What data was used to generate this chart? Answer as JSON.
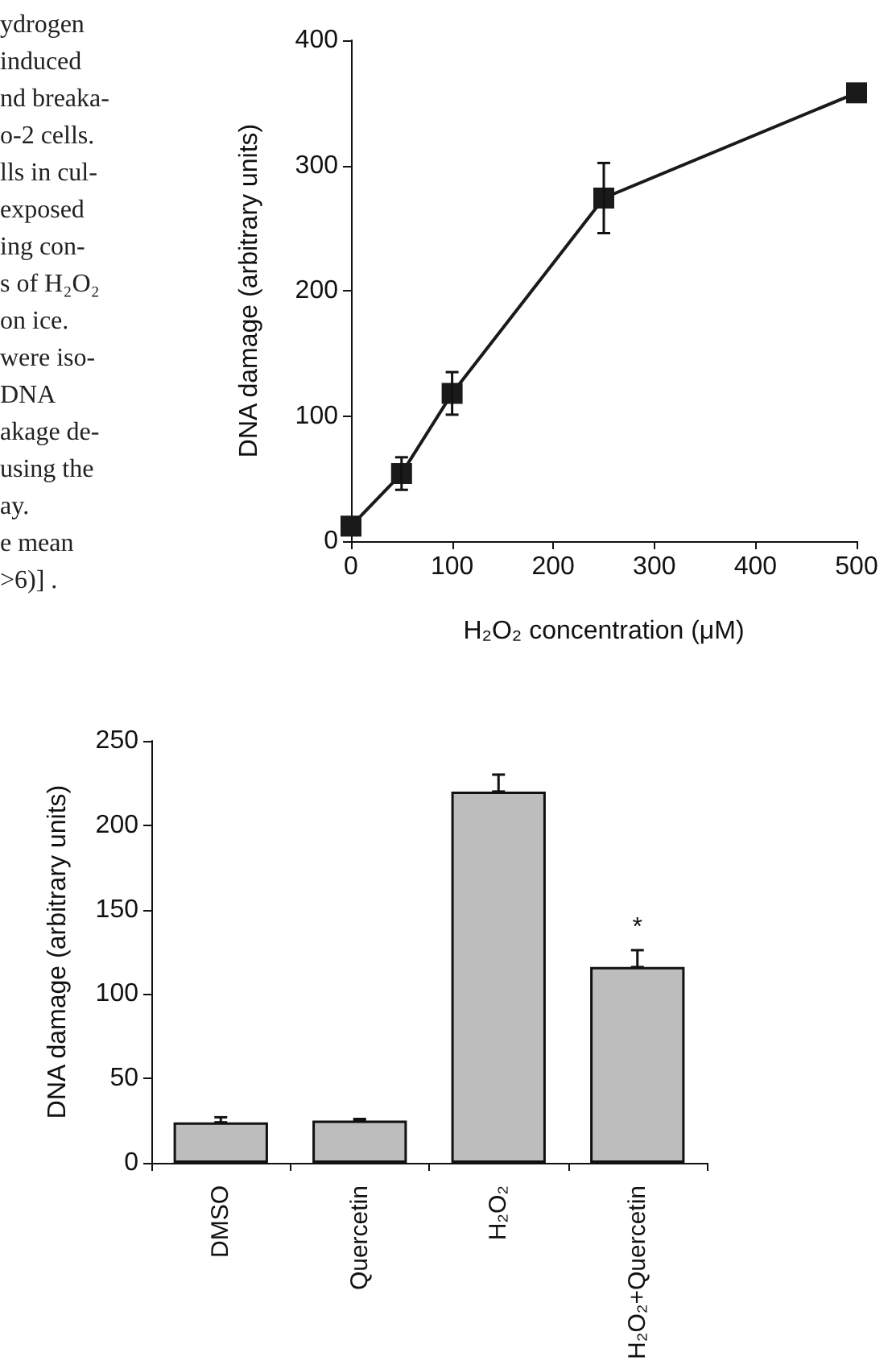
{
  "chart_data": [
    {
      "type": "other",
      "annotations": [
        "ydrogen",
        "induced",
        "nd breaka-",
        "o-2 cells.",
        "lls in cul-",
        "exposed",
        "ing con-",
        "s of H₂O₂",
        "on ice.",
        "were iso-",
        "DNA",
        "akage de-",
        "using the",
        "ay.",
        "e mean",
        ">6)] ."
      ]
    },
    {
      "type": "line",
      "xlabel": "H₂O₂ concentration (μM)",
      "ylabel": "DNA damage (arbitrary units)",
      "x": [
        0,
        50,
        100,
        250,
        500
      ],
      "values": [
        12,
        54,
        118,
        274,
        358
      ],
      "errors": [
        null,
        13,
        17,
        28,
        null
      ],
      "color": "#1a1a1a",
      "xlim": [
        0,
        500
      ],
      "xticks": [
        0,
        100,
        200,
        300,
        400,
        500
      ],
      "ylim": [
        0,
        400
      ],
      "yticks": [
        0,
        100,
        200,
        300,
        400
      ],
      "marker": "square",
      "line_style": "solid",
      "grid": false
    },
    {
      "type": "bar",
      "ylabel": "DNA damage (arbitrary units)",
      "categories": [
        "DMSO",
        "Quercetin",
        "H₂O₂",
        "H₂O₂+Quercetin"
      ],
      "values": [
        24,
        25,
        220,
        116
      ],
      "errors": [
        [
          24,
          27
        ],
        [
          25,
          26
        ],
        [
          220,
          230
        ],
        [
          116,
          126
        ]
      ],
      "color": "#bdbdbd",
      "ylim": [
        0,
        250
      ],
      "yticks": [
        0,
        50,
        100,
        150,
        200,
        250
      ],
      "grid": false,
      "annotations": [
        "*"
      ]
    }
  ]
}
